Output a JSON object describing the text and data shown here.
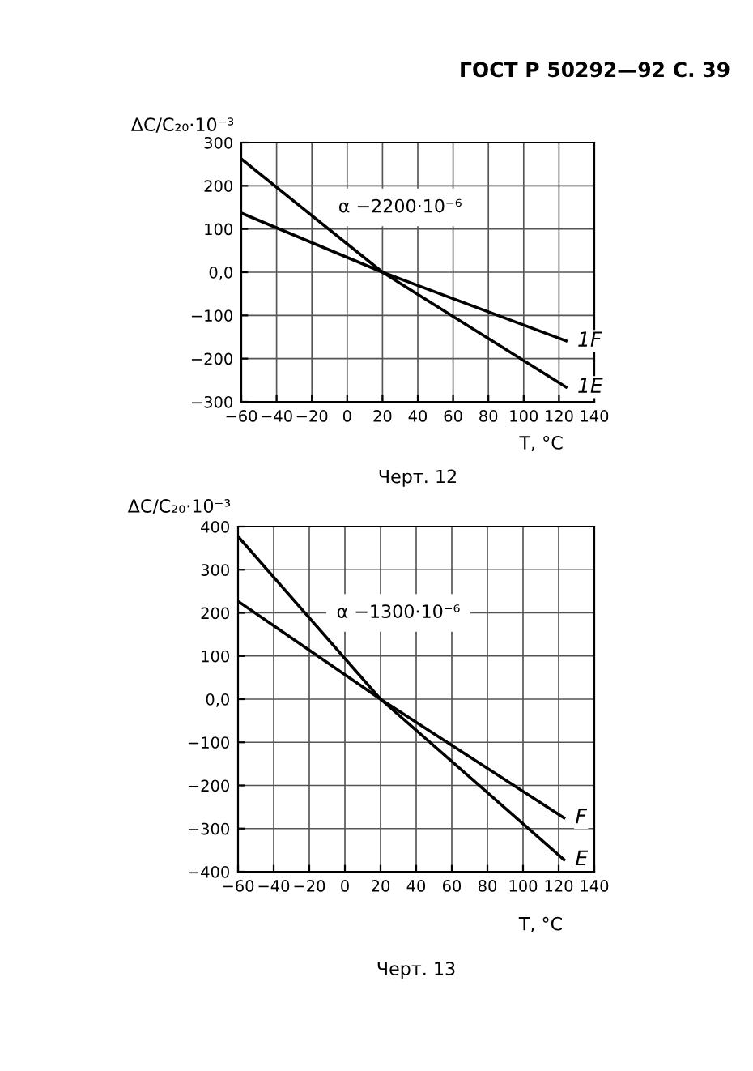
{
  "chart_data": [
    {
      "type": "line",
      "xlabel": "T, °C",
      "ylabel": "ΔC/C₂₀·10⁻³",
      "grid": true,
      "line_style": "solid",
      "marker": "none",
      "annotations": [
        "ГОСТ Р 50292—92 С. 39",
        "α −2200·10⁻⁶",
        "Черт. 12"
      ],
      "xlim": [
        -60,
        140
      ],
      "xticks": [
        {
          "value": -60,
          "label": "−60"
        },
        {
          "value": -40,
          "label": "−40"
        },
        {
          "value": -20,
          "label": "−20"
        },
        0,
        20,
        40,
        60,
        80,
        100,
        120,
        140
      ],
      "ylim": [
        -300,
        300
      ],
      "yticks": [
        {
          "value": -300,
          "label": "−300"
        },
        {
          "value": -200,
          "label": "−200"
        },
        {
          "value": -100,
          "label": "−100"
        },
        {
          "value": 0,
          "label": "0,0"
        },
        100,
        200,
        300
      ],
      "series": [
        {
          "name": "1F",
          "color": "#000000",
          "x": [
            -60,
            20,
            124
          ],
          "values": [
            137,
            0,
            -159
          ]
        },
        {
          "name": "1E",
          "color": "#000000",
          "x": [
            -60,
            20,
            124
          ],
          "values": [
            262,
            0,
            -266
          ]
        }
      ]
    },
    {
      "type": "line",
      "xlabel": "T, °C",
      "ylabel": "ΔC/C₂₀·10⁻³",
      "grid": true,
      "line_style": "solid",
      "marker": "none",
      "annotations": [
        "α −1300·10⁻⁶",
        "Черт. 13"
      ],
      "xlim": [
        -60,
        140
      ],
      "xticks": [
        {
          "value": -60,
          "label": "−60"
        },
        {
          "value": -40,
          "label": "−40"
        },
        {
          "value": -20,
          "label": "−20"
        },
        0,
        20,
        40,
        60,
        80,
        100,
        120,
        140
      ],
      "ylim": [
        -400,
        400
      ],
      "yticks": [
        {
          "value": -400,
          "label": "−400"
        },
        {
          "value": -300,
          "label": "−300"
        },
        {
          "value": -200,
          "label": "−200"
        },
        {
          "value": -100,
          "label": "−100"
        },
        {
          "value": 0,
          "label": "0,0"
        },
        100,
        200,
        300,
        400
      ],
      "series": [
        {
          "name": "F",
          "color": "#000000",
          "x": [
            -60,
            20,
            123
          ],
          "values": [
            227,
            0,
            -275
          ]
        },
        {
          "name": "E",
          "color": "#000000",
          "x": [
            -60,
            20,
            123
          ],
          "values": [
            377,
            0,
            -372
          ]
        }
      ]
    }
  ]
}
